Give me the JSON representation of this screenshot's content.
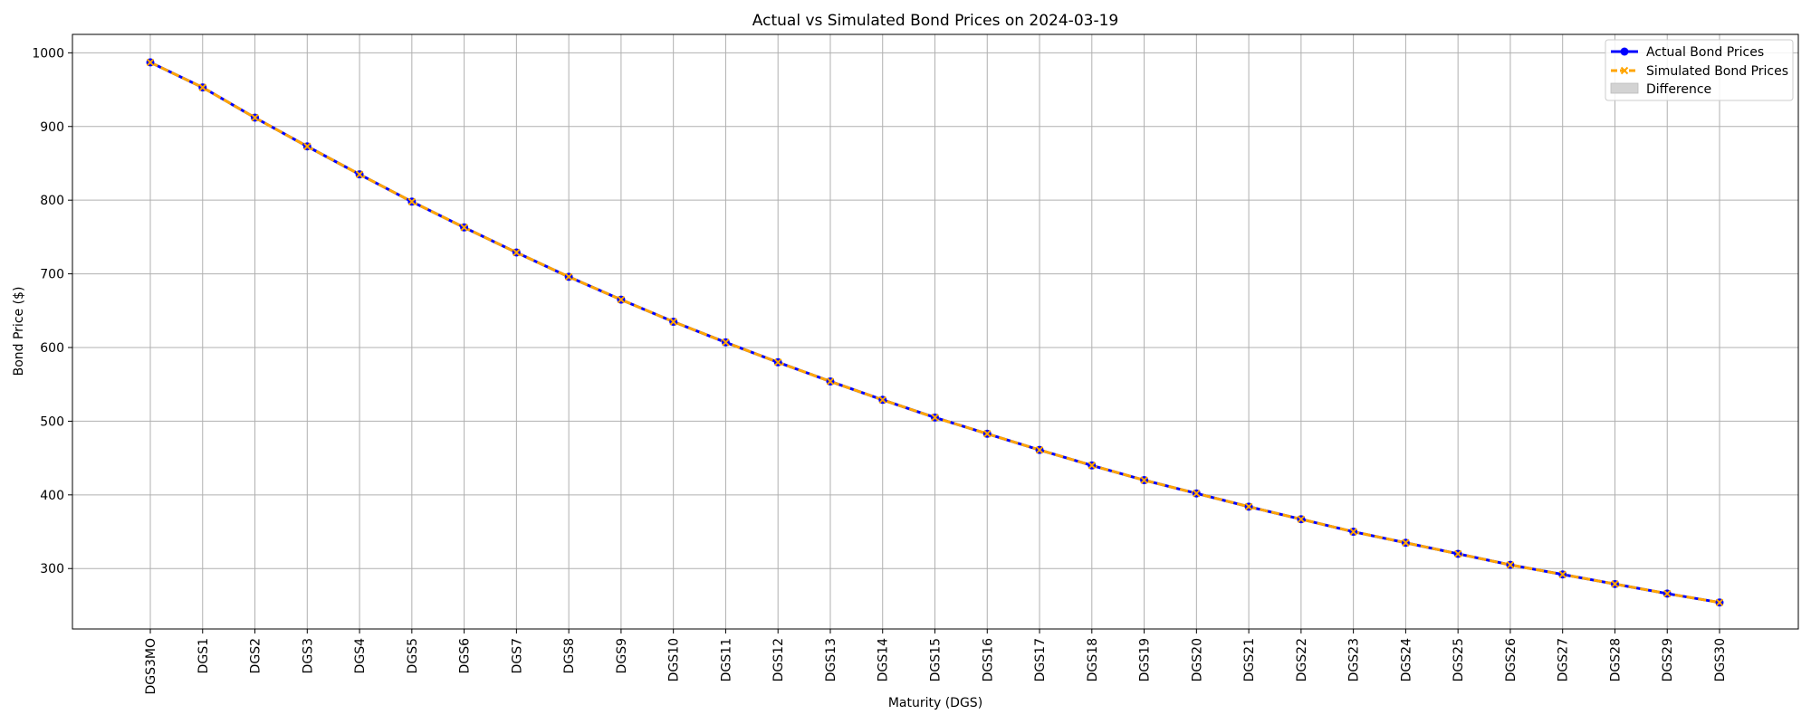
{
  "chart_data": {
    "type": "line",
    "title": "Actual vs Simulated Bond Prices on 2024-03-19",
    "xlabel": "Maturity (DGS)",
    "ylabel": "Bond Price ($)",
    "ylim": [
      218,
      1025
    ],
    "yticks": [
      300,
      400,
      500,
      600,
      700,
      800,
      900,
      1000
    ],
    "grid": true,
    "legend_position": "top-right",
    "categories": [
      "DGS3MO",
      "DGS1",
      "DGS2",
      "DGS3",
      "DGS4",
      "DGS5",
      "DGS6",
      "DGS7",
      "DGS8",
      "DGS9",
      "DGS10",
      "DGS11",
      "DGS12",
      "DGS13",
      "DGS14",
      "DGS15",
      "DGS16",
      "DGS17",
      "DGS18",
      "DGS19",
      "DGS20",
      "DGS21",
      "DGS22",
      "DGS23",
      "DGS24",
      "DGS25",
      "DGS26",
      "DGS27",
      "DGS28",
      "DGS29",
      "DGS30"
    ],
    "series": [
      {
        "name": "Actual Bond Prices",
        "color": "#0000ff",
        "marker": "circle",
        "line_style": "solid",
        "values": [
          987,
          953,
          912,
          873,
          835,
          798,
          763,
          729,
          696,
          665,
          635,
          607,
          580,
          554,
          529,
          505,
          483,
          461,
          440,
          420,
          402,
          384,
          367,
          350,
          335,
          320,
          305,
          292,
          279,
          266,
          254
        ]
      },
      {
        "name": "Simulated Bond Prices",
        "color": "#ffa500",
        "marker": "x",
        "line_style": "dashed",
        "values": [
          987,
          953,
          912,
          873,
          835,
          798,
          763,
          729,
          696,
          665,
          635,
          607,
          580,
          554,
          529,
          505,
          483,
          461,
          440,
          420,
          402,
          384,
          367,
          350,
          335,
          320,
          305,
          292,
          279,
          266,
          254
        ]
      }
    ],
    "difference_band": {
      "name": "Difference",
      "color": "#d3d3d3"
    }
  }
}
